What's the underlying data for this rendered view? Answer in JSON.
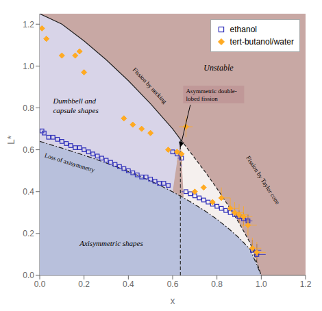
{
  "chart_data": {
    "type": "scatter",
    "x_label": "x",
    "y_label": "L*",
    "xlim": [
      0,
      1.2
    ],
    "ylim": [
      0,
      1.25
    ],
    "xticks": [
      {
        "value": 0,
        "label": "0.0"
      },
      0.2,
      0.4,
      0.6,
      0.8,
      {
        "value": 1.0,
        "label": "1.0"
      },
      1.2
    ],
    "yticks": [
      {
        "value": 0,
        "label": "0.0"
      },
      0.2,
      0.4,
      0.6,
      0.8,
      {
        "value": 1.0,
        "label": "1.0"
      },
      1.2
    ],
    "grid": false,
    "legend": "upper right",
    "color": "#c8a8a4",
    "series": [
      {
        "name": "ethanol",
        "color": "#3333bb",
        "marker": "square",
        "x": [
          0.01,
          0.02,
          0.04,
          0.06,
          0.08,
          0.1,
          0.12,
          0.14,
          0.16,
          0.18,
          0.2,
          0.22,
          0.24,
          0.26,
          0.28,
          0.3,
          0.32,
          0.34,
          0.36,
          0.38,
          0.4,
          0.42,
          0.44,
          0.46,
          0.48,
          0.5,
          0.52,
          0.54,
          0.56,
          0.58,
          0.6,
          0.62,
          0.64,
          0.66,
          0.68,
          0.7,
          0.72,
          0.74,
          0.76,
          0.78,
          0.8,
          0.82,
          0.84,
          0.86,
          0.88,
          0.9,
          0.92,
          0.94,
          0.96,
          0.98
        ],
        "values": [
          0.69,
          0.68,
          0.66,
          0.66,
          0.65,
          0.64,
          0.63,
          0.62,
          0.61,
          0.61,
          0.6,
          0.59,
          0.58,
          0.57,
          0.56,
          0.55,
          0.54,
          0.53,
          0.52,
          0.51,
          0.5,
          0.49,
          0.48,
          0.47,
          0.47,
          0.46,
          0.45,
          0.44,
          0.44,
          0.43,
          0.59,
          0.58,
          0.56,
          0.4,
          0.39,
          0.38,
          0.37,
          0.36,
          0.35,
          0.34,
          0.33,
          0.32,
          0.31,
          0.3,
          0.29,
          0.28,
          0.27,
          0.26,
          0.12,
          0.1
        ],
        "xerr": [
          0.01,
          0.01,
          0.01,
          0.01,
          0.01,
          0.01,
          0.01,
          0.01,
          0.01,
          0.01,
          0.01,
          0.01,
          0.01,
          0.01,
          0.01,
          0.01,
          0.01,
          0.01,
          0.01,
          0.01,
          0.01,
          0.01,
          0.01,
          0.01,
          0.01,
          0.01,
          0.01,
          0.01,
          0.01,
          0.01,
          0.02,
          0.02,
          0.02,
          0.02,
          0.02,
          0.02,
          0.02,
          0.02,
          0.02,
          0.02,
          0.02,
          0.02,
          0.02,
          0.02,
          0.02,
          0.02,
          0.02,
          0.02,
          0.04,
          0.04
        ],
        "yerr": [
          0.03,
          0.03,
          0.03,
          0.03,
          0.03,
          0.03,
          0.03,
          0.03,
          0.03,
          0.03,
          0.03,
          0.03,
          0.03,
          0.03,
          0.03,
          0.03,
          0.03,
          0.03,
          0.03,
          0.03,
          0.03,
          0.03,
          0.03,
          0.03,
          0.03,
          0.03,
          0.03,
          0.03,
          0.03,
          0.03,
          0.04,
          0.04,
          0.04,
          0.03,
          0.03,
          0.03,
          0.03,
          0.03,
          0.03,
          0.03,
          0.03,
          0.03,
          0.03,
          0.03,
          0.03,
          0.03,
          0.03,
          0.03,
          0.05,
          0.05
        ]
      },
      {
        "name": "tert-butanol/water",
        "color": "#ffaa22",
        "marker": "diamond",
        "x": [
          0.01,
          0.03,
          0.1,
          0.16,
          0.18,
          0.2,
          0.38,
          0.42,
          0.46,
          0.5,
          0.58,
          0.62,
          0.64,
          0.66,
          0.7,
          0.74,
          0.78,
          0.82,
          0.86,
          0.88,
          0.9,
          0.92,
          0.94,
          0.96,
          0.98
        ],
        "values": [
          1.18,
          1.13,
          1.05,
          1.05,
          1.07,
          0.97,
          0.75,
          0.72,
          0.7,
          0.68,
          0.6,
          0.59,
          0.58,
          0.71,
          0.4,
          0.42,
          0.35,
          0.37,
          0.32,
          0.3,
          0.29,
          0.28,
          0.24,
          0.13,
          0.11
        ],
        "xerr": [
          0.01,
          0.01,
          0.02,
          0.02,
          0.02,
          0.02,
          0.03,
          0.03,
          0.03,
          0.03,
          0.03,
          0.03,
          0.03,
          0.03,
          0.04,
          0.04,
          0.04,
          0.04,
          0.04,
          0.04,
          0.04,
          0.04,
          0.04,
          0.04,
          0.04
        ],
        "yerr": [
          0.03,
          0.03,
          0.04,
          0.04,
          0.04,
          0.04,
          0.05,
          0.05,
          0.05,
          0.05,
          0.05,
          0.05,
          0.05,
          0.05,
          0.05,
          0.05,
          0.05,
          0.05,
          0.05,
          0.05,
          0.05,
          0.05,
          0.05,
          0.05,
          0.05
        ]
      }
    ],
    "regions": [
      {
        "color": "#d8d4e8",
        "x": [
          0.0,
          0.0,
          0.0,
          0.1,
          0.2,
          0.3,
          0.4,
          0.5,
          0.6,
          0.635,
          0.6,
          0.55,
          0.5,
          0.45,
          0.4,
          0.35,
          0.3,
          0.25,
          0.2,
          0.15,
          0.1,
          0.05,
          0.0
        ],
        "y": [
          1.25,
          1.25,
          1.25,
          1.2,
          1.12,
          1.03,
          0.93,
          0.82,
          0.7,
          0.65,
          0.399,
          0.426,
          0.451,
          0.474,
          0.496,
          0.517,
          0.537,
          0.556,
          0.574,
          0.591,
          0.608,
          0.624,
          0.64
        ]
      },
      {
        "color": "#f5f0ee",
        "x": [
          0.635,
          0.7,
          0.75,
          0.8,
          0.85,
          0.9,
          0.95,
          1.0,
          1.0,
          0.95,
          0.9,
          0.85,
          0.8,
          0.75,
          0.7,
          0.65
        ],
        "y": [
          0.65,
          0.56,
          0.49,
          0.415,
          0.335,
          0.25,
          0.155,
          0.0,
          0.0,
          0.124,
          0.179,
          0.226,
          0.268,
          0.305,
          0.339,
          0.37
        ]
      },
      {
        "color": "#b8c0dc",
        "x": [
          0.0,
          0.0,
          0.05,
          0.1,
          0.15,
          0.2,
          0.25,
          0.3,
          0.35,
          0.4,
          0.45,
          0.5,
          0.55,
          0.6,
          0.65,
          0.7,
          0.75,
          0.8,
          0.85,
          0.9,
          0.95,
          1.0,
          1.0,
          0.0
        ],
        "y": [
          0.0,
          0.64,
          0.624,
          0.608,
          0.591,
          0.574,
          0.556,
          0.537,
          0.517,
          0.496,
          0.474,
          0.451,
          0.426,
          0.399,
          0.37,
          0.339,
          0.305,
          0.268,
          0.226,
          0.179,
          0.124,
          0.0,
          0.0,
          0.0
        ]
      }
    ],
    "lines": [
      {
        "line_style": "dashdot",
        "color": "#222222",
        "x": [
          0.0,
          0.05,
          0.1,
          0.15,
          0.2,
          0.25,
          0.3,
          0.35,
          0.4,
          0.45,
          0.5,
          0.55,
          0.6,
          0.65,
          0.7,
          0.75,
          0.8,
          0.85,
          0.9,
          0.95,
          1.0
        ],
        "y": [
          0.64,
          0.624,
          0.608,
          0.591,
          0.574,
          0.556,
          0.537,
          0.517,
          0.496,
          0.474,
          0.451,
          0.426,
          0.399,
          0.37,
          0.339,
          0.305,
          0.268,
          0.226,
          0.179,
          0.124,
          0.0
        ]
      },
      {
        "line_style": "solid",
        "color": "#222222",
        "x": [
          0.0,
          0.1,
          0.2,
          0.3,
          0.4,
          0.5,
          0.6,
          0.635
        ],
        "y": [
          1.25,
          1.2,
          1.12,
          1.03,
          0.93,
          0.82,
          0.7,
          0.65
        ]
      },
      {
        "line_style": "dashed",
        "color": "#222222",
        "x": [
          0.635,
          0.7,
          0.75,
          0.8,
          0.85,
          0.9,
          0.95,
          1.0
        ],
        "y": [
          0.65,
          0.56,
          0.49,
          0.415,
          0.335,
          0.25,
          0.155,
          0.0
        ]
      },
      {
        "line_style": "dashed",
        "color": "#333333",
        "x": [
          0.635,
          0.635
        ],
        "y": [
          0.0,
          0.65
        ]
      }
    ],
    "annotations": [
      {
        "text": "Unstable"
      },
      {
        "text": "Dumbbell and\ncapsule shapes"
      },
      {
        "text": "Axisymmetric shapes"
      },
      {
        "text": "Loss of axisymmetry"
      },
      {
        "text": "Fission by necking"
      },
      {
        "text": "Fission by Taylor cone"
      },
      {
        "text": "Asymmetric double-\nlobed fission",
        "x": 0.635,
        "y": 0.615,
        "color": "#c09898"
      }
    ]
  }
}
